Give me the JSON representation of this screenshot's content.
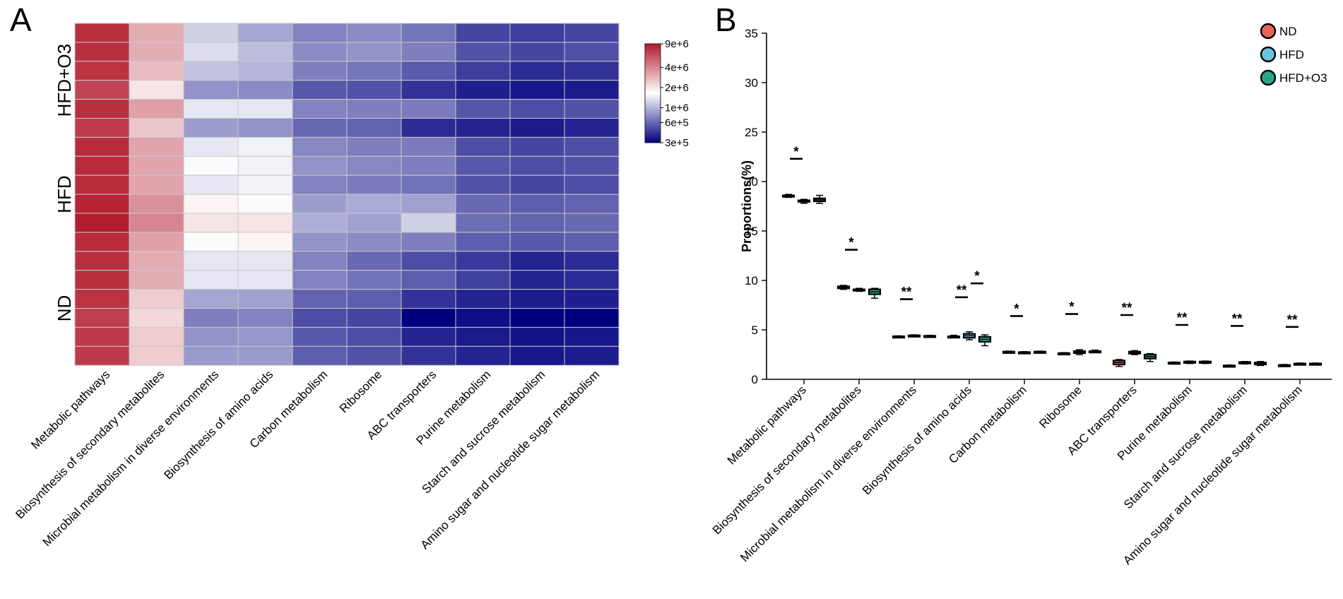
{
  "chart_data": [
    {
      "type": "heatmap",
      "panel_label": "A",
      "categories": [
        "Metabolic pathways",
        "Biosynthesis of secondary metabolites",
        "Microbial metabolism in diverse environments",
        "Biosynthesis of amino acids",
        "Carbon metabolism",
        "Ribosome",
        "ABC transporters",
        "Purine metabolism",
        "Starch and sucrose metabolism",
        "Amino sugar and nucleotide sugar metabolism"
      ],
      "groups": [
        {
          "name": "HFD+O3",
          "n_rows": 6
        },
        {
          "name": "HFD",
          "n_rows": 6
        },
        {
          "name": "ND",
          "n_rows": 6
        }
      ],
      "values": [
        [
          7600000.0,
          3000000.0,
          1200000.0,
          900000.0,
          720000.0,
          760000.0,
          650000.0,
          480000.0,
          450000.0,
          480000.0
        ],
        [
          7600000.0,
          3000000.0,
          1300000.0,
          1050000.0,
          760000.0,
          800000.0,
          700000.0,
          520000.0,
          480000.0,
          510000.0
        ],
        [
          7400000.0,
          2700000.0,
          1100000.0,
          1000000.0,
          700000.0,
          660000.0,
          550000.0,
          450000.0,
          400000.0,
          420000.0
        ],
        [
          6500000.0,
          2000000.0,
          800000.0,
          760000.0,
          540000.0,
          520000.0,
          420000.0,
          370000.0,
          350000.0,
          360000.0
        ],
        [
          7600000.0,
          3300000.0,
          1400000.0,
          1400000.0,
          720000.0,
          700000.0,
          680000.0,
          530000.0,
          500000.0,
          520000.0
        ],
        [
          6900000.0,
          2500000.0,
          850000.0,
          800000.0,
          600000.0,
          580000.0,
          400000.0,
          380000.0,
          360000.0,
          380000.0
        ],
        [
          7800000.0,
          3200000.0,
          1400000.0,
          1500000.0,
          740000.0,
          700000.0,
          680000.0,
          500000.0,
          480000.0,
          500000.0
        ],
        [
          7800000.0,
          3200000.0,
          1600000.0,
          1500000.0,
          800000.0,
          740000.0,
          700000.0,
          540000.0,
          500000.0,
          520000.0
        ],
        [
          7800000.0,
          3200000.0,
          1400000.0,
          1500000.0,
          720000.0,
          680000.0,
          640000.0,
          520000.0,
          480000.0,
          500000.0
        ],
        [
          8300000.0,
          3700000.0,
          1800000.0,
          1600000.0,
          860000.0,
          940000.0,
          880000.0,
          600000.0,
          560000.0,
          580000.0
        ],
        [
          8800000.0,
          4000000.0,
          2000000.0,
          2000000.0,
          950000.0,
          880000.0,
          1200000.0,
          620000.0,
          580000.0,
          600000.0
        ],
        [
          7800000.0,
          3300000.0,
          1600000.0,
          1800000.0,
          800000.0,
          760000.0,
          700000.0,
          560000.0,
          540000.0,
          560000.0
        ],
        [
          7600000.0,
          3000000.0,
          1400000.0,
          1400000.0,
          720000.0,
          600000.0,
          500000.0,
          440000.0,
          380000.0,
          400000.0
        ],
        [
          7600000.0,
          3000000.0,
          1400000.0,
          1400000.0,
          720000.0,
          640000.0,
          560000.0,
          460000.0,
          380000.0,
          400000.0
        ],
        [
          7400000.0,
          2400000.0,
          900000.0,
          880000.0,
          580000.0,
          560000.0,
          420000.0,
          380000.0,
          360000.0,
          370000.0
        ],
        [
          6800000.0,
          2200000.0,
          700000.0,
          720000.0,
          500000.0,
          480000.0,
          300000.0,
          330000.0,
          300000.0,
          300000.0
        ],
        [
          7000000.0,
          2400000.0,
          800000.0,
          820000.0,
          540000.0,
          500000.0,
          380000.0,
          360000.0,
          340000.0,
          350000.0
        ],
        [
          7000000.0,
          2400000.0,
          840000.0,
          840000.0,
          560000.0,
          520000.0,
          420000.0,
          380000.0,
          350000.0,
          360000.0
        ]
      ],
      "colorbar": {
        "ticks": [
          "9e+6",
          "4e+6",
          "2e+6",
          "1e+6",
          "6e+5",
          "3e+5"
        ],
        "tick_values": [
          9000000.0,
          4000000.0,
          2000000.0,
          1000000.0,
          600000.0,
          300000.0
        ],
        "colors": {
          "high": "#b2182b",
          "mid": "#ffffff",
          "low": "#00007f"
        }
      }
    },
    {
      "type": "box",
      "panel_label": "B",
      "ylabel": "Proportions(%)",
      "ylim": [
        0,
        35
      ],
      "yticks": [
        0,
        5,
        10,
        15,
        20,
        25,
        30,
        35
      ],
      "categories": [
        "Metabolic pathways",
        "Biosynthesis of secondary metabolites",
        "Microbial metabolism in diverse environments",
        "Biosynthesis of amino acids",
        "Carbon metabolism",
        "Ribosome",
        "ABC transporters",
        "Purine metabolism",
        "Starch and sucrose metabolism",
        "Amino sugar and nucleotide sugar metabolism"
      ],
      "legend": [
        {
          "name": "ND",
          "color": "#e8635a"
        },
        {
          "name": "HFD",
          "color": "#6cc3e0"
        },
        {
          "name": "HFD+O3",
          "color": "#2aa58a"
        }
      ],
      "series": [
        {
          "name": "ND",
          "values": [
            [
              18.4,
              18.5,
              18.6,
              18.7
            ],
            [
              9.1,
              9.2,
              9.4,
              9.5
            ],
            [
              4.2,
              4.25,
              4.35,
              4.4
            ],
            [
              4.2,
              4.25,
              4.35,
              4.45
            ],
            [
              2.7,
              2.75,
              2.8,
              2.85
            ],
            [
              2.5,
              2.55,
              2.65,
              2.7
            ],
            [
              1.3,
              1.5,
              1.9,
              2.0
            ],
            [
              1.6,
              1.65,
              1.7,
              1.75
            ],
            [
              1.25,
              1.3,
              1.4,
              1.45
            ],
            [
              1.3,
              1.35,
              1.45,
              1.5
            ]
          ]
        },
        {
          "name": "HFD",
          "values": [
            [
              17.8,
              17.95,
              18.1,
              18.2
            ],
            [
              8.9,
              9.0,
              9.1,
              9.2
            ],
            [
              4.3,
              4.35,
              4.45,
              4.5
            ],
            [
              4.0,
              4.2,
              4.6,
              4.8
            ],
            [
              2.65,
              2.7,
              2.75,
              2.8
            ],
            [
              2.5,
              2.65,
              2.85,
              3.0
            ],
            [
              2.5,
              2.6,
              2.8,
              2.9
            ],
            [
              1.6,
              1.7,
              1.8,
              1.85
            ],
            [
              1.55,
              1.6,
              1.75,
              1.8
            ],
            [
              1.45,
              1.5,
              1.6,
              1.65
            ]
          ]
        },
        {
          "name": "HFD+O3",
          "values": [
            [
              17.8,
              18.0,
              18.3,
              18.6
            ],
            [
              8.2,
              8.6,
              9.1,
              9.2
            ],
            [
              4.25,
              4.3,
              4.4,
              4.45
            ],
            [
              3.4,
              3.8,
              4.3,
              4.5
            ],
            [
              2.7,
              2.75,
              2.8,
              2.85
            ],
            [
              2.7,
              2.75,
              2.85,
              2.95
            ],
            [
              1.8,
              2.1,
              2.5,
              2.6
            ],
            [
              1.6,
              1.7,
              1.8,
              1.85
            ],
            [
              1.4,
              1.5,
              1.7,
              1.8
            ],
            [
              1.45,
              1.5,
              1.6,
              1.65
            ]
          ]
        }
      ],
      "annotations": [
        {
          "category": 0,
          "text": "*",
          "y": 22.3,
          "pair": "ND-HFD"
        },
        {
          "category": 1,
          "text": "*",
          "y": 13.1,
          "pair": "ND-HFD"
        },
        {
          "category": 2,
          "text": "**",
          "y": 8.1,
          "pair": "ND-HFD"
        },
        {
          "category": 3,
          "text": "**",
          "y": 8.3,
          "pair": "ND-HFD"
        },
        {
          "category": 3,
          "text": "*",
          "y": 9.7,
          "pair": "HFD-HFD+O3"
        },
        {
          "category": 4,
          "text": "*",
          "y": 6.4,
          "pair": "ND-HFD"
        },
        {
          "category": 5,
          "text": "*",
          "y": 6.6,
          "pair": "ND-HFD"
        },
        {
          "category": 6,
          "text": "**",
          "y": 6.5,
          "pair": "ND-HFD"
        },
        {
          "category": 7,
          "text": "**",
          "y": 5.5,
          "pair": "ND-HFD"
        },
        {
          "category": 8,
          "text": "**",
          "y": 5.4,
          "pair": "ND-HFD"
        },
        {
          "category": 9,
          "text": "**",
          "y": 5.3,
          "pair": "ND-HFD"
        }
      ]
    }
  ]
}
